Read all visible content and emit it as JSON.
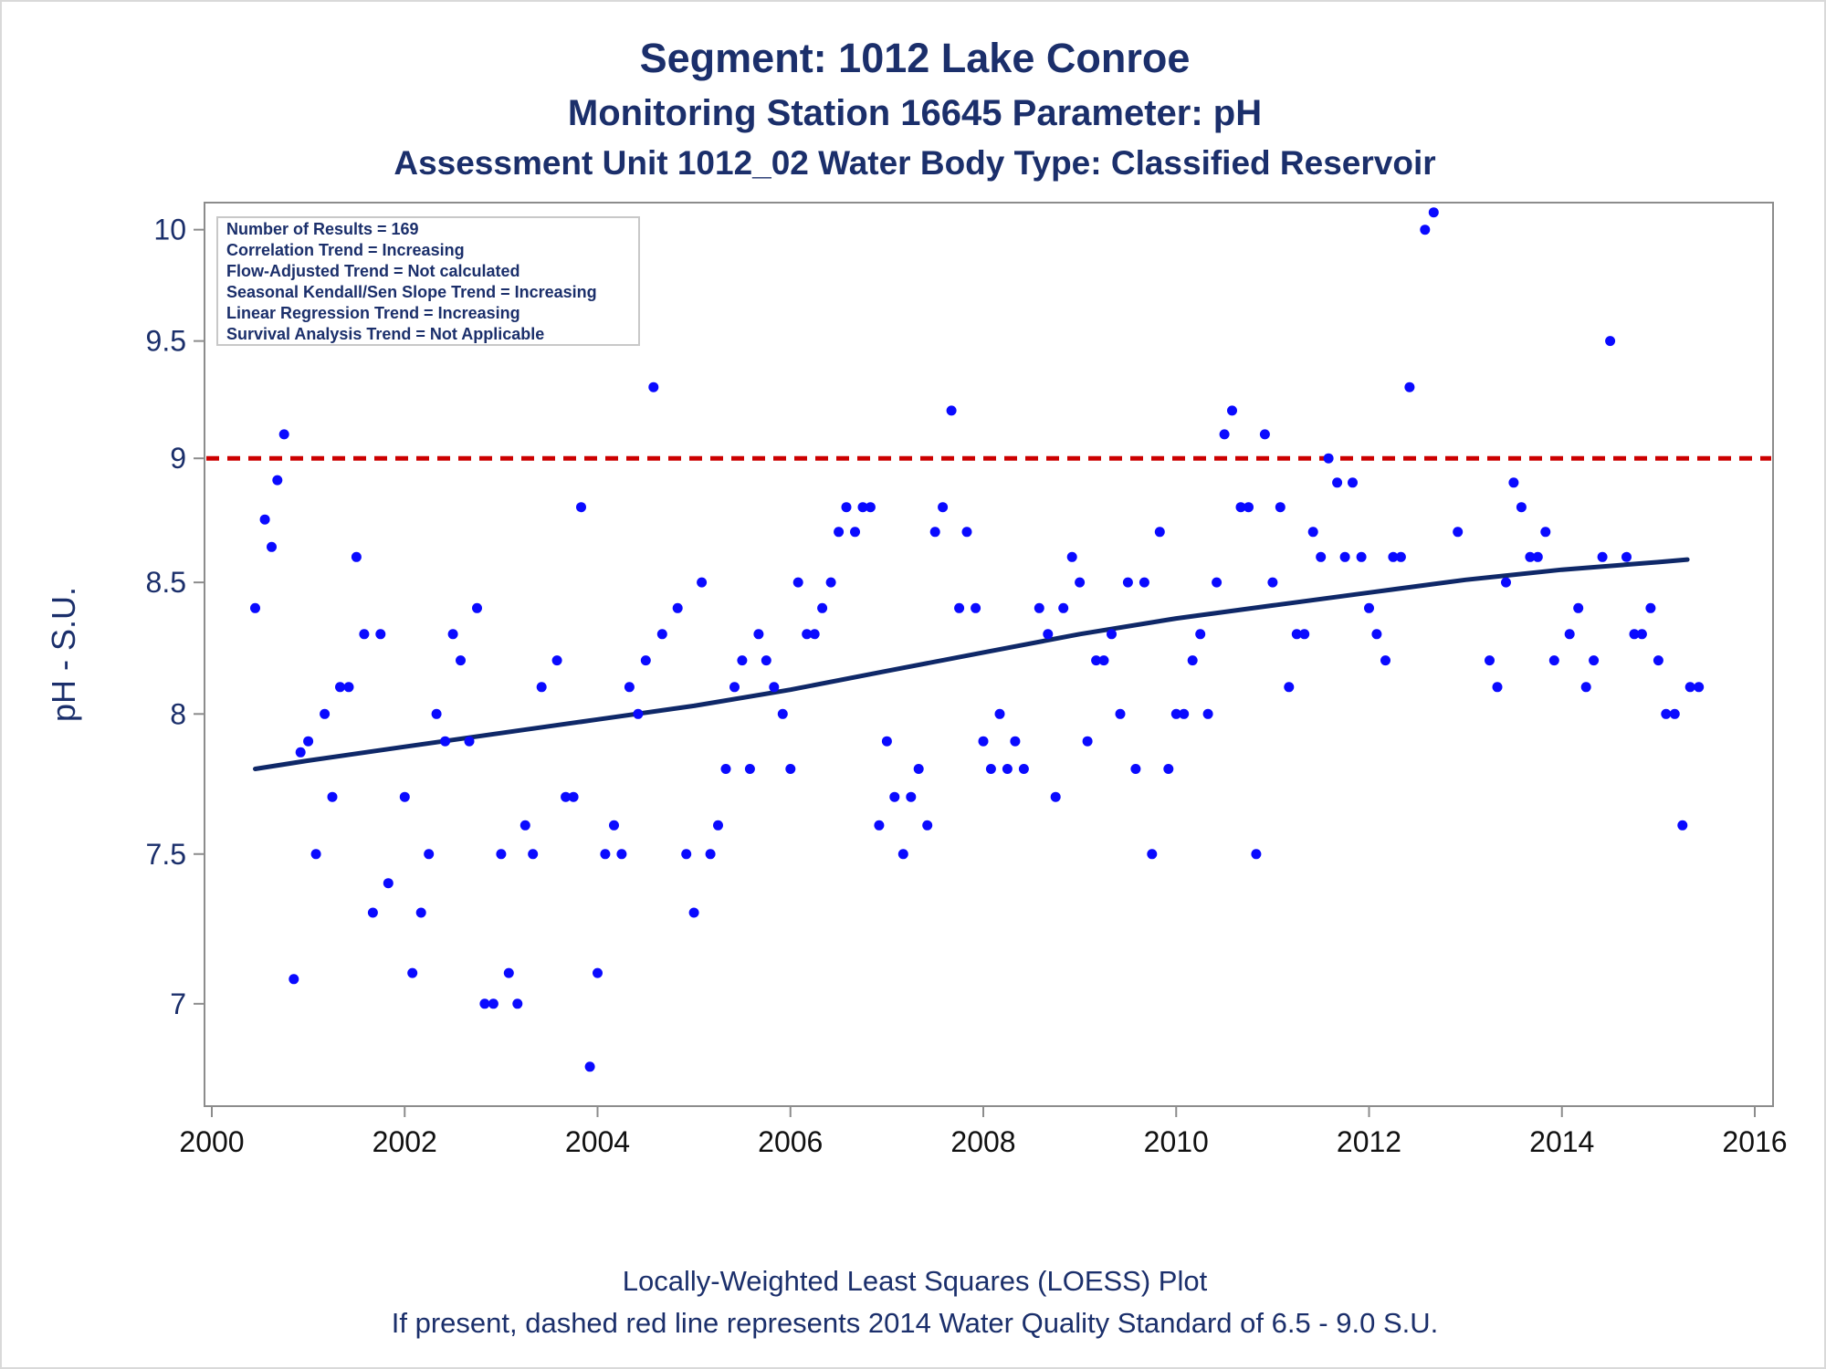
{
  "title": "Segment: 1012  Lake Conroe",
  "subtitle": "Monitoring Station 16645 Parameter: pH",
  "subtitle2": "Assessment Unit 1012_02   Water Body Type: Classified Reservoir",
  "footnote1": "Locally-Weighted Least Squares (LOESS) Plot",
  "footnote2": "If present, dashed red line represents 2014 Water Quality Standard of 6.5 - 9.0 S.U.",
  "stats_box": [
    "Number of Results = 169",
    "Correlation Trend = Increasing",
    "Flow-Adjusted Trend = Not calculated",
    "Seasonal Kendall/Sen Slope Trend = Increasing",
    "Linear Regression Trend = Increasing",
    "Survival Analysis Trend = Not Applicable"
  ],
  "colors": {
    "points": "#0a0aff",
    "trend_line": "#0f2868",
    "standard_line": "#cc0000",
    "text": "#1b2f6b",
    "axis": "#8c8c8c"
  },
  "chart_data": {
    "type": "scatter",
    "xlabel": "",
    "ylabel": "pH - S.U.",
    "xlim": [
      2000,
      2016
    ],
    "ylim": [
      6.7,
      10.1
    ],
    "x_ticks": [
      2000,
      2002,
      2004,
      2006,
      2008,
      2010,
      2012,
      2014,
      2016
    ],
    "y_ticks": [
      7,
      7.5,
      8,
      8.5,
      9,
      9.5,
      10
    ],
    "y_scale": "log",
    "grid": false,
    "standard_line": {
      "y": 9.0,
      "style": "dashed"
    },
    "trend_line": {
      "x": [
        2000.45,
        2001,
        2002,
        2003,
        2004,
        2005,
        2006,
        2007,
        2008,
        2009,
        2010,
        2011,
        2012,
        2013,
        2014,
        2015,
        2015.3
      ],
      "y": [
        7.8,
        7.83,
        7.88,
        7.93,
        7.98,
        8.03,
        8.09,
        8.16,
        8.23,
        8.3,
        8.36,
        8.41,
        8.46,
        8.51,
        8.55,
        8.58,
        8.59
      ]
    },
    "series": [
      {
        "points": [
          [
            2000.45,
            8.4
          ],
          [
            2000.55,
            8.75
          ],
          [
            2000.62,
            8.64
          ],
          [
            2000.68,
            8.91
          ],
          [
            2000.75,
            9.1
          ],
          [
            2000.85,
            7.08
          ],
          [
            2000.92,
            7.86
          ],
          [
            2001.0,
            7.9
          ],
          [
            2001.08,
            7.5
          ],
          [
            2001.17,
            8.0
          ],
          [
            2001.25,
            7.7
          ],
          [
            2001.33,
            8.1
          ],
          [
            2001.42,
            8.1
          ],
          [
            2001.5,
            8.6
          ],
          [
            2001.58,
            8.3
          ],
          [
            2001.67,
            7.3
          ],
          [
            2001.75,
            8.3
          ],
          [
            2001.83,
            7.4
          ],
          [
            2002.0,
            7.7
          ],
          [
            2002.08,
            7.1
          ],
          [
            2002.17,
            7.3
          ],
          [
            2002.25,
            7.5
          ],
          [
            2002.33,
            8.0
          ],
          [
            2002.42,
            7.9
          ],
          [
            2002.5,
            8.3
          ],
          [
            2002.58,
            8.2
          ],
          [
            2002.67,
            7.9
          ],
          [
            2002.75,
            8.4
          ],
          [
            2002.83,
            7.0
          ],
          [
            2002.92,
            7.0
          ],
          [
            2003.0,
            7.5
          ],
          [
            2003.08,
            7.1
          ],
          [
            2003.17,
            7.0
          ],
          [
            2003.25,
            7.6
          ],
          [
            2003.33,
            7.5
          ],
          [
            2003.42,
            8.1
          ],
          [
            2003.58,
            8.2
          ],
          [
            2003.67,
            7.7
          ],
          [
            2003.75,
            7.7
          ],
          [
            2003.83,
            8.8
          ],
          [
            2003.92,
            6.8
          ],
          [
            2004.0,
            7.1
          ],
          [
            2004.08,
            7.5
          ],
          [
            2004.17,
            7.6
          ],
          [
            2004.25,
            7.5
          ],
          [
            2004.33,
            8.1
          ],
          [
            2004.42,
            8.0
          ],
          [
            2004.5,
            8.2
          ],
          [
            2004.58,
            9.3
          ],
          [
            2004.67,
            8.3
          ],
          [
            2004.83,
            8.4
          ],
          [
            2004.92,
            7.5
          ],
          [
            2005.0,
            7.3
          ],
          [
            2005.08,
            8.5
          ],
          [
            2005.17,
            7.5
          ],
          [
            2005.25,
            7.6
          ],
          [
            2005.33,
            7.8
          ],
          [
            2005.42,
            8.1
          ],
          [
            2005.5,
            8.2
          ],
          [
            2005.58,
            7.8
          ],
          [
            2005.67,
            8.3
          ],
          [
            2005.75,
            8.2
          ],
          [
            2005.83,
            8.1
          ],
          [
            2005.92,
            8.0
          ],
          [
            2006.0,
            7.8
          ],
          [
            2006.08,
            8.5
          ],
          [
            2006.17,
            8.3
          ],
          [
            2006.25,
            8.3
          ],
          [
            2006.33,
            8.4
          ],
          [
            2006.42,
            8.5
          ],
          [
            2006.5,
            8.7
          ],
          [
            2006.58,
            8.8
          ],
          [
            2006.67,
            8.7
          ],
          [
            2006.75,
            8.8
          ],
          [
            2006.83,
            8.8
          ],
          [
            2006.92,
            7.6
          ],
          [
            2007.0,
            7.9
          ],
          [
            2007.08,
            7.7
          ],
          [
            2007.17,
            7.5
          ],
          [
            2007.25,
            7.7
          ],
          [
            2007.33,
            7.8
          ],
          [
            2007.42,
            7.6
          ],
          [
            2007.5,
            8.7
          ],
          [
            2007.58,
            8.8
          ],
          [
            2007.67,
            9.2
          ],
          [
            2007.75,
            8.4
          ],
          [
            2007.83,
            8.7
          ],
          [
            2007.92,
            8.4
          ],
          [
            2008.0,
            7.9
          ],
          [
            2008.08,
            7.8
          ],
          [
            2008.17,
            8.0
          ],
          [
            2008.25,
            7.8
          ],
          [
            2008.33,
            7.9
          ],
          [
            2008.42,
            7.8
          ],
          [
            2008.58,
            8.4
          ],
          [
            2008.67,
            8.3
          ],
          [
            2008.75,
            7.7
          ],
          [
            2008.83,
            8.4
          ],
          [
            2008.92,
            8.6
          ],
          [
            2009.0,
            8.5
          ],
          [
            2009.08,
            7.9
          ],
          [
            2009.17,
            8.2
          ],
          [
            2009.25,
            8.2
          ],
          [
            2009.33,
            8.3
          ],
          [
            2009.42,
            8.0
          ],
          [
            2009.5,
            8.5
          ],
          [
            2009.58,
            7.8
          ],
          [
            2009.67,
            8.5
          ],
          [
            2009.75,
            7.5
          ],
          [
            2009.83,
            8.7
          ],
          [
            2009.92,
            7.8
          ],
          [
            2010.0,
            8.0
          ],
          [
            2010.08,
            8.0
          ],
          [
            2010.17,
            8.2
          ],
          [
            2010.25,
            8.3
          ],
          [
            2010.33,
            8.0
          ],
          [
            2010.42,
            8.5
          ],
          [
            2010.5,
            9.1
          ],
          [
            2010.58,
            9.2
          ],
          [
            2010.67,
            8.8
          ],
          [
            2010.75,
            8.8
          ],
          [
            2010.83,
            7.5
          ],
          [
            2010.92,
            9.1
          ],
          [
            2011.0,
            8.5
          ],
          [
            2011.08,
            8.8
          ],
          [
            2011.17,
            8.1
          ],
          [
            2011.25,
            8.3
          ],
          [
            2011.33,
            8.3
          ],
          [
            2011.42,
            8.7
          ],
          [
            2011.5,
            8.6
          ],
          [
            2011.58,
            9.0
          ],
          [
            2011.67,
            8.9
          ],
          [
            2011.75,
            8.6
          ],
          [
            2011.83,
            8.9
          ],
          [
            2011.92,
            8.6
          ],
          [
            2012.0,
            8.4
          ],
          [
            2012.08,
            8.3
          ],
          [
            2012.17,
            8.2
          ],
          [
            2012.25,
            8.6
          ],
          [
            2012.33,
            8.6
          ],
          [
            2012.42,
            9.3
          ],
          [
            2012.58,
            10.0
          ],
          [
            2012.67,
            10.08
          ],
          [
            2012.92,
            8.7
          ],
          [
            2013.25,
            8.2
          ],
          [
            2013.33,
            8.1
          ],
          [
            2013.42,
            8.5
          ],
          [
            2013.5,
            8.9
          ],
          [
            2013.58,
            8.8
          ],
          [
            2013.67,
            8.6
          ],
          [
            2013.75,
            8.6
          ],
          [
            2013.83,
            8.7
          ],
          [
            2013.92,
            8.2
          ],
          [
            2014.08,
            8.3
          ],
          [
            2014.17,
            8.4
          ],
          [
            2014.25,
            8.1
          ],
          [
            2014.33,
            8.2
          ],
          [
            2014.42,
            8.6
          ],
          [
            2014.5,
            9.5
          ],
          [
            2014.67,
            8.6
          ],
          [
            2014.75,
            8.3
          ],
          [
            2014.83,
            8.3
          ],
          [
            2014.92,
            8.4
          ],
          [
            2015.0,
            8.2
          ],
          [
            2015.08,
            8.0
          ],
          [
            2015.17,
            8.0
          ],
          [
            2015.25,
            7.6
          ],
          [
            2015.33,
            8.1
          ],
          [
            2015.42,
            8.1
          ]
        ]
      }
    ]
  }
}
